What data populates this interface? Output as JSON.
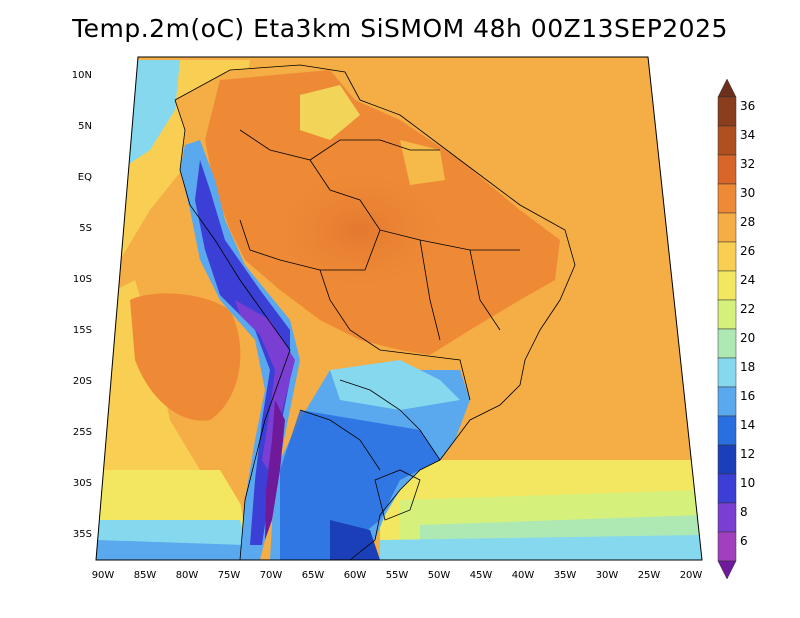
{
  "title": "Temp.2m(oC) Eta3km SiSMOM 48h 00Z13SEP2025",
  "map": {
    "lat_labels": [
      "10N",
      "5N",
      "EQ",
      "5S",
      "10S",
      "15S",
      "20S",
      "25S",
      "30S",
      "35S"
    ],
    "lon_labels": [
      "90W",
      "85W",
      "80W",
      "75W",
      "70W",
      "65W",
      "60W",
      "55W",
      "50W",
      "45W",
      "40W",
      "35W",
      "30W",
      "25W",
      "20W"
    ]
  },
  "colorbar": {
    "unit": "oC",
    "labels": [
      "36",
      "34",
      "32",
      "30",
      "28",
      "26",
      "24",
      "22",
      "20",
      "18",
      "16",
      "14",
      "12",
      "10",
      "8",
      "6"
    ],
    "colors": [
      "#6b2f1c",
      "#8a3e1e",
      "#b1501f",
      "#d8662a",
      "#ee8a36",
      "#f5ad45",
      "#f8cf53",
      "#f3e761",
      "#d6f07c",
      "#aee9b4",
      "#86d8ee",
      "#5aa8ee",
      "#2a6fe0",
      "#1a3fb8",
      "#3c3fd6",
      "#7a3fd2",
      "#a23fbe",
      "#6e1a9a"
    ]
  }
}
